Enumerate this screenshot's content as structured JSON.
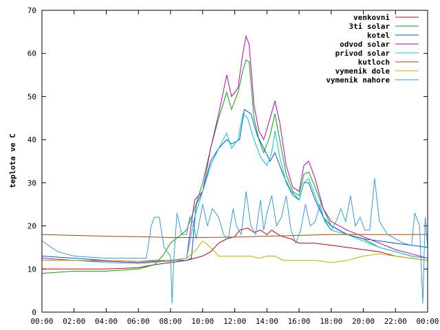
{
  "chart_data": {
    "type": "line",
    "title": "",
    "xlabel": "",
    "ylabel": "teplota ve C",
    "xlim": [
      0,
      24
    ],
    "ylim": [
      0,
      70
    ],
    "x_tick_labels": [
      "00:00",
      "02:00",
      "04:00",
      "06:00",
      "08:00",
      "10:00",
      "12:00",
      "14:00",
      "16:00",
      "18:00",
      "20:00",
      "22:00",
      "00:00"
    ],
    "y_tick_labels": [
      "0",
      "10",
      "20",
      "30",
      "40",
      "50",
      "60",
      "70"
    ],
    "grid": false,
    "legend_position": "top-right",
    "series": [
      {
        "name": "venkovni",
        "color": "#cc0000",
        "points": [
          [
            0,
            10
          ],
          [
            2,
            10
          ],
          [
            4,
            10
          ],
          [
            6,
            10.3
          ],
          [
            7,
            11
          ],
          [
            8,
            11.5
          ],
          [
            9,
            12
          ],
          [
            9.5,
            12.5
          ],
          [
            10,
            13
          ],
          [
            10.5,
            14
          ],
          [
            11,
            16
          ],
          [
            11.5,
            17
          ],
          [
            12,
            17.5
          ],
          [
            12.3,
            19
          ],
          [
            12.8,
            19.5
          ],
          [
            13.2,
            18.5
          ],
          [
            13.6,
            19
          ],
          [
            14,
            18
          ],
          [
            14.3,
            19
          ],
          [
            14.7,
            18
          ],
          [
            15,
            17.5
          ],
          [
            15.5,
            17
          ],
          [
            16,
            16
          ],
          [
            17,
            16
          ],
          [
            18,
            15.5
          ],
          [
            19,
            15
          ],
          [
            20,
            14.5
          ],
          [
            21,
            14
          ],
          [
            22,
            13
          ],
          [
            23,
            12.5
          ],
          [
            24,
            12
          ]
        ]
      },
      {
        "name": "3ti solar",
        "color": "#00aa00",
        "points": [
          [
            0,
            9
          ],
          [
            2,
            9.5
          ],
          [
            4,
            9.5
          ],
          [
            6,
            10
          ],
          [
            6.5,
            10.5
          ],
          [
            7,
            11
          ],
          [
            7.5,
            13
          ],
          [
            8,
            16
          ],
          [
            8.5,
            17.5
          ],
          [
            9,
            19
          ],
          [
            9.5,
            24
          ],
          [
            10,
            30
          ],
          [
            10.5,
            38
          ],
          [
            11,
            45
          ],
          [
            11.5,
            51
          ],
          [
            11.8,
            47
          ],
          [
            12.2,
            51
          ],
          [
            12.5,
            56
          ],
          [
            12.7,
            58.5
          ],
          [
            12.9,
            58
          ],
          [
            13.2,
            45
          ],
          [
            13.5,
            40
          ],
          [
            13.8,
            37
          ],
          [
            14.2,
            41
          ],
          [
            14.5,
            46
          ],
          [
            14.8,
            40
          ],
          [
            15.2,
            32
          ],
          [
            15.6,
            28
          ],
          [
            16,
            27
          ],
          [
            16.3,
            32
          ],
          [
            16.6,
            32.5
          ],
          [
            17,
            29
          ],
          [
            17.5,
            24
          ],
          [
            18,
            20
          ],
          [
            19,
            18
          ],
          [
            20,
            17
          ],
          [
            21,
            15
          ],
          [
            22,
            14
          ],
          [
            23,
            13
          ],
          [
            24,
            12.5
          ]
        ]
      },
      {
        "name": "kotel",
        "color": "#0055cc",
        "points": [
          [
            0,
            13
          ],
          [
            2,
            12.5
          ],
          [
            4,
            12
          ],
          [
            6,
            11.8
          ],
          [
            7,
            12
          ],
          [
            8,
            12
          ],
          [
            9,
            12
          ],
          [
            9.3,
            12.5
          ],
          [
            9.6,
            25
          ],
          [
            10,
            28
          ],
          [
            10.5,
            35
          ],
          [
            11,
            38
          ],
          [
            11.5,
            40
          ],
          [
            11.8,
            39
          ],
          [
            12.3,
            40
          ],
          [
            12.6,
            47
          ],
          [
            13,
            46
          ],
          [
            13.4,
            41
          ],
          [
            13.8,
            38
          ],
          [
            14.2,
            35
          ],
          [
            14.5,
            37
          ],
          [
            15,
            32
          ],
          [
            15.5,
            28
          ],
          [
            16,
            26
          ],
          [
            16.3,
            30
          ],
          [
            16.6,
            30
          ],
          [
            17,
            26
          ],
          [
            17.5,
            22
          ],
          [
            18,
            20
          ],
          [
            19,
            18
          ],
          [
            20,
            17
          ],
          [
            21,
            16.5
          ],
          [
            22,
            16
          ],
          [
            23,
            15.5
          ],
          [
            24,
            15
          ]
        ]
      },
      {
        "name": "odvod solar",
        "color": "#bb00bb",
        "points": [
          [
            0,
            12.5
          ],
          [
            2,
            12
          ],
          [
            4,
            11.8
          ],
          [
            6,
            11.5
          ],
          [
            8,
            12
          ],
          [
            9,
            12.5
          ],
          [
            9.5,
            26
          ],
          [
            10,
            28
          ],
          [
            10.5,
            38
          ],
          [
            11,
            46
          ],
          [
            11.5,
            55
          ],
          [
            11.8,
            50
          ],
          [
            12.2,
            52
          ],
          [
            12.5,
            60
          ],
          [
            12.7,
            64
          ],
          [
            12.9,
            62
          ],
          [
            13.2,
            48
          ],
          [
            13.5,
            42
          ],
          [
            13.8,
            40
          ],
          [
            14.2,
            45
          ],
          [
            14.5,
            49
          ],
          [
            14.8,
            44
          ],
          [
            15.2,
            34
          ],
          [
            15.6,
            29
          ],
          [
            16,
            28
          ],
          [
            16.3,
            34
          ],
          [
            16.6,
            35
          ],
          [
            17,
            31
          ],
          [
            17.5,
            24
          ],
          [
            18,
            21
          ],
          [
            19,
            19
          ],
          [
            20,
            17.5
          ],
          [
            21,
            16
          ],
          [
            22,
            14.5
          ],
          [
            23,
            13.5
          ],
          [
            24,
            12.5
          ]
        ]
      },
      {
        "name": "privod solar",
        "color": "#00cccc",
        "points": [
          [
            0,
            12
          ],
          [
            2,
            12
          ],
          [
            4,
            11.5
          ],
          [
            6,
            11.3
          ],
          [
            8,
            11.8
          ],
          [
            9,
            12.5
          ],
          [
            9.5,
            22
          ],
          [
            10,
            28
          ],
          [
            10.5,
            34
          ],
          [
            11,
            38
          ],
          [
            11.5,
            41.5
          ],
          [
            11.8,
            38
          ],
          [
            12.2,
            40
          ],
          [
            12.5,
            46
          ],
          [
            12.8,
            45
          ],
          [
            13.2,
            40
          ],
          [
            13.6,
            36
          ],
          [
            14,
            34
          ],
          [
            14.3,
            37
          ],
          [
            14.5,
            42
          ],
          [
            14.8,
            36
          ],
          [
            15.2,
            30
          ],
          [
            15.6,
            27
          ],
          [
            16,
            26
          ],
          [
            16.3,
            30
          ],
          [
            16.6,
            31
          ],
          [
            17,
            27
          ],
          [
            17.5,
            22
          ],
          [
            18,
            19
          ],
          [
            19,
            18
          ],
          [
            20,
            16.5
          ],
          [
            21,
            15
          ],
          [
            22,
            14
          ],
          [
            23,
            13
          ],
          [
            24,
            12.5
          ]
        ]
      },
      {
        "name": "kutloch",
        "color": "#aa4400",
        "points": [
          [
            0,
            18
          ],
          [
            2,
            17.8
          ],
          [
            4,
            17.6
          ],
          [
            6,
            17.5
          ],
          [
            8,
            17.3
          ],
          [
            10,
            17.3
          ],
          [
            12,
            17.4
          ],
          [
            14,
            17.6
          ],
          [
            16,
            17.8
          ],
          [
            18,
            18
          ],
          [
            20,
            18
          ],
          [
            22,
            18
          ],
          [
            24,
            18
          ]
        ]
      },
      {
        "name": "vymenik dole",
        "color": "#ccaa00",
        "points": [
          [
            0,
            12
          ],
          [
            2,
            12
          ],
          [
            4,
            12
          ],
          [
            6,
            11.8
          ],
          [
            8,
            12
          ],
          [
            9,
            12.5
          ],
          [
            9.5,
            14
          ],
          [
            10,
            16.5
          ],
          [
            10.5,
            15
          ],
          [
            11,
            13
          ],
          [
            12,
            13
          ],
          [
            13,
            13
          ],
          [
            13.5,
            12.5
          ],
          [
            14,
            13
          ],
          [
            14.5,
            13
          ],
          [
            15,
            12
          ],
          [
            16,
            12
          ],
          [
            17,
            12
          ],
          [
            18,
            11.5
          ],
          [
            19,
            12
          ],
          [
            20,
            13
          ],
          [
            21,
            13.5
          ],
          [
            22,
            13
          ],
          [
            23,
            12.5
          ],
          [
            24,
            12
          ]
        ]
      },
      {
        "name": "vymenik nahore",
        "color": "#3399dd",
        "points": [
          [
            0,
            16.5
          ],
          [
            1,
            14
          ],
          [
            2,
            13
          ],
          [
            4,
            12.5
          ],
          [
            6,
            12.5
          ],
          [
            6.5,
            12.5
          ],
          [
            6.8,
            20
          ],
          [
            7,
            22
          ],
          [
            7.3,
            22
          ],
          [
            7.6,
            15
          ],
          [
            8,
            13
          ],
          [
            8.1,
            2
          ],
          [
            8.2,
            12
          ],
          [
            8.4,
            23
          ],
          [
            8.7,
            18
          ],
          [
            9,
            18
          ],
          [
            9.2,
            22
          ],
          [
            9.4,
            21
          ],
          [
            9.6,
            17
          ],
          [
            9.8,
            21
          ],
          [
            10,
            25
          ],
          [
            10.3,
            20
          ],
          [
            10.6,
            24
          ],
          [
            11,
            22
          ],
          [
            11.3,
            18
          ],
          [
            11.6,
            17
          ],
          [
            11.9,
            24
          ],
          [
            12.1,
            20
          ],
          [
            12.4,
            18
          ],
          [
            12.7,
            28
          ],
          [
            13,
            20
          ],
          [
            13.3,
            18
          ],
          [
            13.6,
            26
          ],
          [
            13.8,
            19
          ],
          [
            14,
            23
          ],
          [
            14.3,
            27
          ],
          [
            14.6,
            20
          ],
          [
            14.9,
            22
          ],
          [
            15.2,
            27
          ],
          [
            15.5,
            19
          ],
          [
            15.8,
            16
          ],
          [
            16.1,
            19
          ],
          [
            16.4,
            25
          ],
          [
            16.7,
            20
          ],
          [
            17,
            21
          ],
          [
            17.3,
            25
          ],
          [
            17.6,
            21
          ],
          [
            18,
            19
          ],
          [
            18.3,
            21
          ],
          [
            18.6,
            24
          ],
          [
            18.9,
            21
          ],
          [
            19.2,
            27
          ],
          [
            19.5,
            20
          ],
          [
            19.8,
            22
          ],
          [
            20.1,
            19
          ],
          [
            20.4,
            19
          ],
          [
            20.7,
            31
          ],
          [
            21,
            21
          ],
          [
            21.5,
            18
          ],
          [
            22,
            17
          ],
          [
            22.5,
            16
          ],
          [
            23,
            15.5
          ],
          [
            23.2,
            23
          ],
          [
            23.5,
            20
          ],
          [
            23.7,
            2
          ],
          [
            23.85,
            22
          ],
          [
            24,
            15
          ]
        ]
      }
    ]
  }
}
